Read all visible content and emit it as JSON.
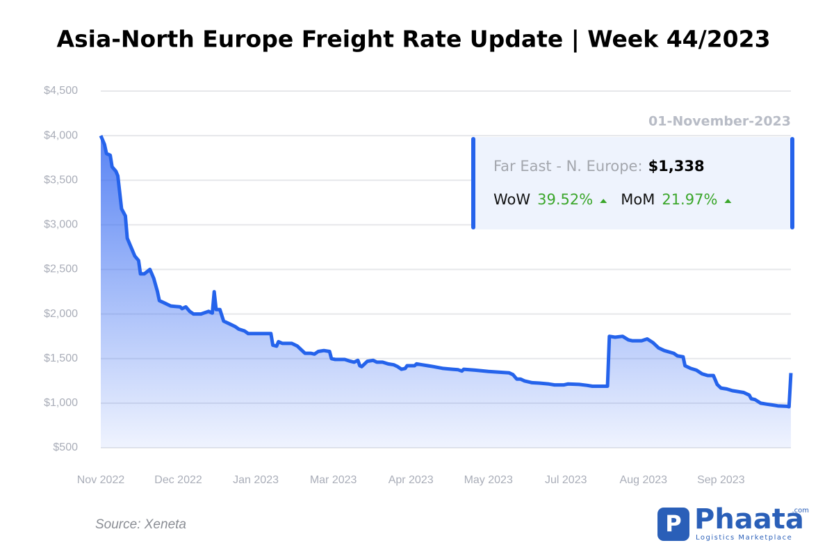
{
  "chart_data": {
    "type": "line",
    "title": "Asia-North Europe Freight Rate Update | Week 44/2023",
    "color": "#2563eb",
    "grid": true,
    "ylim": [
      500,
      4500
    ],
    "yticks": [
      {
        "value": 500,
        "label": "$500"
      },
      {
        "value": 1000,
        "label": "$1,000"
      },
      {
        "value": 1500,
        "label": "$1,500"
      },
      {
        "value": 2000,
        "label": "$2,000"
      },
      {
        "value": 2500,
        "label": "$2,500"
      },
      {
        "value": 3000,
        "label": "$3,000"
      },
      {
        "value": 3500,
        "label": "$3,500"
      },
      {
        "value": 4000,
        "label": "$4,000"
      },
      {
        "value": 4500,
        "label": "$4,500"
      }
    ],
    "xlim": [
      0,
      365
    ],
    "xticks": [
      {
        "value": 0,
        "label": "Nov 2022"
      },
      {
        "value": 41,
        "label": "Dec 2022"
      },
      {
        "value": 82,
        "label": "Jan 2023"
      },
      {
        "value": 123,
        "label": "Mar 2023"
      },
      {
        "value": 164,
        "label": "Apr 2023"
      },
      {
        "value": 205,
        "label": "May 2023"
      },
      {
        "value": 246,
        "label": "Jul 2023"
      },
      {
        "value": 287,
        "label": "Aug 2023"
      },
      {
        "value": 328,
        "label": "Sep 2023"
      }
    ],
    "x": [
      0,
      2,
      3,
      5,
      6,
      8,
      9,
      11,
      13,
      14,
      16,
      18,
      20,
      21,
      23,
      26,
      28,
      30,
      31,
      34,
      37,
      42,
      43,
      45,
      47,
      49,
      53,
      57,
      59,
      60,
      61,
      63,
      65,
      68,
      71,
      73,
      76,
      78,
      80,
      85,
      90,
      91,
      93,
      94,
      96,
      101,
      104,
      108,
      111,
      113,
      115,
      118,
      121,
      122,
      124,
      129,
      132,
      134,
      136,
      137,
      138,
      139,
      141,
      144,
      146,
      149,
      152,
      155,
      157,
      159,
      161,
      162,
      166,
      167,
      170,
      173,
      176,
      181,
      186,
      189,
      191,
      192,
      198,
      205,
      216,
      218,
      220,
      222,
      224,
      228,
      232,
      237,
      240,
      245,
      247,
      253,
      257,
      260,
      266,
      268,
      269,
      272,
      276,
      279,
      281,
      286,
      289,
      292,
      295,
      298,
      303,
      305,
      308,
      309,
      312,
      315,
      318,
      321,
      324,
      326,
      328,
      331,
      334,
      340,
      343,
      344,
      346,
      349,
      352,
      355,
      358,
      363,
      364,
      365
    ],
    "values": [
      4000,
      3900,
      3800,
      3780,
      3650,
      3600,
      3550,
      3180,
      3100,
      2850,
      2750,
      2650,
      2600,
      2450,
      2450,
      2500,
      2400,
      2250,
      2150,
      2120,
      2090,
      2080,
      2060,
      2080,
      2030,
      2000,
      2000,
      2030,
      2010,
      2250,
      2050,
      2050,
      1920,
      1890,
      1860,
      1830,
      1810,
      1780,
      1780,
      1780,
      1780,
      1650,
      1640,
      1690,
      1670,
      1670,
      1640,
      1560,
      1560,
      1550,
      1580,
      1590,
      1580,
      1500,
      1490,
      1490,
      1470,
      1460,
      1480,
      1420,
      1410,
      1430,
      1470,
      1480,
      1460,
      1460,
      1440,
      1430,
      1410,
      1380,
      1390,
      1420,
      1420,
      1440,
      1430,
      1420,
      1410,
      1390,
      1380,
      1375,
      1360,
      1380,
      1370,
      1355,
      1340,
      1320,
      1270,
      1270,
      1250,
      1230,
      1225,
      1215,
      1205,
      1205,
      1215,
      1210,
      1200,
      1190,
      1190,
      1190,
      1750,
      1740,
      1750,
      1710,
      1700,
      1700,
      1720,
      1680,
      1620,
      1590,
      1560,
      1530,
      1520,
      1420,
      1390,
      1370,
      1330,
      1310,
      1310,
      1210,
      1170,
      1160,
      1140,
      1120,
      1090,
      1050,
      1040,
      1000,
      990,
      980,
      970,
      965,
      960,
      1338
    ],
    "tooltip": {
      "date": "01-November-2023",
      "route": "Far East - N. Europe:",
      "rate": "$1,338",
      "wow_label": "WoW",
      "wow": "39.52%",
      "mom_label": "MoM",
      "mom": "21.97%"
    },
    "source": "Source: Xeneta",
    "logo": {
      "name": "Phaata",
      "suffix": ".com",
      "tagline": "Logistics Marketplace",
      "icon": "P"
    }
  }
}
